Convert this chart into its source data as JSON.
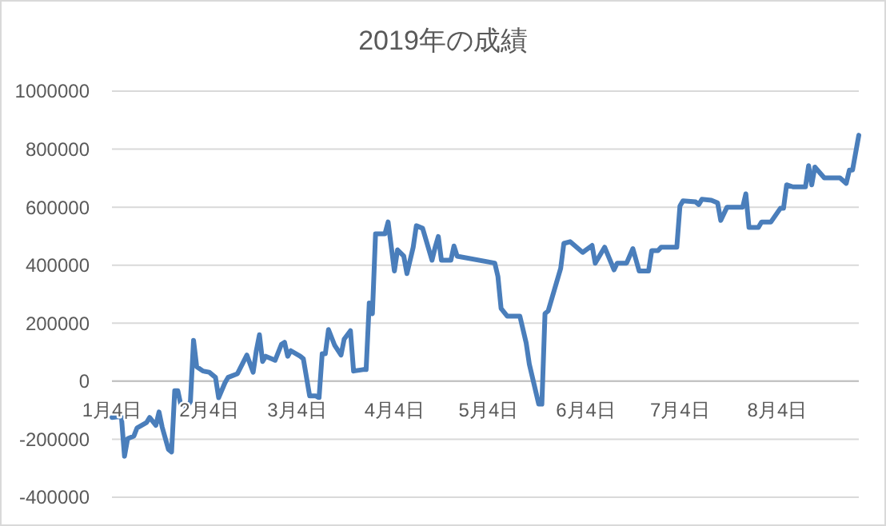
{
  "chart_data": {
    "type": "line",
    "title": "2019年の成績",
    "grid": "y",
    "marker": "none",
    "line_style": "solid",
    "xlim": [
      "--01-04",
      "--08-30"
    ],
    "xticks": [
      {
        "value": "--01-04",
        "label": "1月4日"
      },
      {
        "value": "--02-04",
        "label": "2月4日"
      },
      {
        "value": "--03-04",
        "label": "3月4日"
      },
      {
        "value": "--04-04",
        "label": "4月4日"
      },
      {
        "value": "--05-04",
        "label": "5月4日"
      },
      {
        "value": "--06-04",
        "label": "6月4日"
      },
      {
        "value": "--07-04",
        "label": "7月4日"
      },
      {
        "value": "--08-04",
        "label": "8月4日"
      }
    ],
    "ylim": [
      -400000,
      1000000
    ],
    "yticks": [
      -400000,
      -200000,
      0,
      200000,
      400000,
      600000,
      800000,
      1000000
    ],
    "x": [
      "--01-04",
      "--01-07",
      "--01-08",
      "--01-09",
      "--01-11",
      "--01-12",
      "--01-15",
      "--01-16",
      "--01-18",
      "--01-19",
      "--01-20",
      "--01-22",
      "--01-23",
      "--01-24",
      "--01-25",
      "--01-26",
      "--01-28",
      "--01-29",
      "--01-30",
      "--01-31",
      "--02-02",
      "--02-04",
      "--02-06",
      "--02-07",
      "--02-09",
      "--02-10",
      "--02-13",
      "--02-16",
      "--02-18",
      "--02-19",
      "--02-20",
      "--02-21",
      "--02-22",
      "--02-24",
      "--02-25",
      "--02-27",
      "--02-28",
      "--03-01",
      "--03-02",
      "--03-05",
      "--03-06",
      "--03-08",
      "--03-10",
      "--03-11",
      "--03-12",
      "--03-13",
      "--03-14",
      "--03-16",
      "--03-18",
      "--03-19",
      "--03-21",
      "--03-22",
      "--03-25",
      "--03-26",
      "--03-27",
      "--03-28",
      "--03-29",
      "--04-01",
      "--04-02",
      "--04-04",
      "--04-05",
      "--04-07",
      "--04-08",
      "--04-10",
      "--04-11",
      "--04-13",
      "--04-16",
      "--04-17",
      "--04-18",
      "--04-19",
      "--04-22",
      "--04-23",
      "--04-24",
      "--05-06",
      "--05-07",
      "--05-08",
      "--05-10",
      "--05-14",
      "--05-16",
      "--05-17",
      "--05-20",
      "--05-21",
      "--05-22",
      "--05-23",
      "--05-27",
      "--05-28",
      "--05-30",
      "--06-03",
      "--06-06",
      "--06-07",
      "--06-10",
      "--06-13",
      "--06-14",
      "--06-17",
      "--06-19",
      "--06-21",
      "--06-24",
      "--06-25",
      "--06-27",
      "--06-28",
      "--07-03",
      "--07-04",
      "--07-05",
      "--07-09",
      "--07-10",
      "--07-11",
      "--07-14",
      "--07-16",
      "--07-17",
      "--07-19",
      "--07-24",
      "--07-25",
      "--07-26",
      "--07-29",
      "--07-30",
      "--08-02",
      "--08-05",
      "--08-06",
      "--08-07",
      "--08-09",
      "--08-13",
      "--08-14",
      "--08-15",
      "--08-16",
      "--08-19",
      "--08-24",
      "--08-26",
      "--08-27",
      "--08-28",
      "--08-30"
    ],
    "series": [
      {
        "color": "#4a7ebb",
        "values": [
          -125000,
          -121000,
          -259000,
          -198000,
          -189000,
          -161000,
          -143000,
          -125000,
          -152000,
          -106000,
          -158000,
          -235000,
          -244000,
          -33000,
          -33000,
          -84000,
          -88000,
          -70000,
          141000,
          50000,
          35000,
          31000,
          13000,
          -57000,
          -6000,
          13000,
          26000,
          90000,
          31000,
          105000,
          160000,
          68000,
          86000,
          77000,
          72000,
          127000,
          134000,
          86000,
          105000,
          86000,
          77000,
          -51000,
          -51000,
          -57000,
          95000,
          95000,
          178000,
          123000,
          90000,
          145000,
          174000,
          35000,
          40000,
          40000,
          270000,
          233000,
          508000,
          508000,
          549000,
          380000,
          453000,
          431000,
          371000,
          462000,
          536000,
          527000,
          417000,
          462000,
          499000,
          417000,
          417000,
          466000,
          431000,
          407000,
          361000,
          251000,
          224000,
          224000,
          132000,
          59000,
          -79000,
          -79000,
          233000,
          242000,
          389000,
          475000,
          481000,
          444000,
          468000,
          407000,
          462000,
          384000,
          407000,
          407000,
          457000,
          380000,
          380000,
          450000,
          450000,
          462000,
          462000,
          604000,
          622000,
          618000,
          609000,
          627000,
          624000,
          615000,
          554000,
          600000,
          600000,
          646000,
          530000,
          530000,
          549000,
          549000,
          596000,
          596000,
          677000,
          670000,
          670000,
          743000,
          677000,
          738000,
          701000,
          701000,
          682000,
          728000,
          728000,
          848000
        ]
      }
    ]
  }
}
